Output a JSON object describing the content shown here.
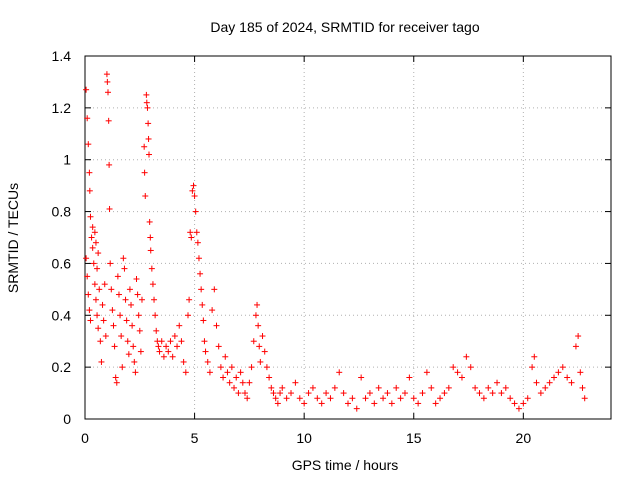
{
  "chart_data": {
    "type": "scatter",
    "title": "Day 185 of 2024, SRMTID for receiver tago",
    "xlabel": "GPS time / hours",
    "ylabel": "SRMTID / TECUs",
    "xlim": [
      0,
      24
    ],
    "ylim": [
      0,
      1.4
    ],
    "x_ticks": [
      0,
      5,
      10,
      15,
      20
    ],
    "x_tick_labels": [
      "0",
      "5",
      "10",
      "15",
      "20"
    ],
    "y_ticks": [
      0,
      0.2,
      0.4,
      0.6,
      0.8,
      1.0,
      1.2,
      1.4
    ],
    "y_tick_labels": [
      "0",
      "0.2",
      "0.4",
      "0.6",
      "0.8",
      "1",
      "1.2",
      "1.4"
    ],
    "grid": true,
    "marker": "plus",
    "color": "#ff0000",
    "series": [
      {
        "name": "SRMTID",
        "points": [
          [
            0.05,
            1.27
          ],
          [
            0.1,
            1.16
          ],
          [
            0.15,
            1.06
          ],
          [
            0.2,
            0.95
          ],
          [
            0.22,
            0.88
          ],
          [
            0.25,
            0.78
          ],
          [
            0.05,
            0.62
          ],
          [
            0.1,
            0.55
          ],
          [
            0.15,
            0.48
          ],
          [
            0.2,
            0.42
          ],
          [
            0.25,
            0.38
          ],
          [
            0.3,
            0.7
          ],
          [
            0.35,
            0.66
          ],
          [
            0.4,
            0.6
          ],
          [
            0.45,
            0.52
          ],
          [
            0.5,
            0.46
          ],
          [
            0.55,
            0.4
          ],
          [
            0.6,
            0.35
          ],
          [
            0.35,
            0.74
          ],
          [
            0.45,
            0.72
          ],
          [
            0.5,
            0.68
          ],
          [
            0.55,
            0.58
          ],
          [
            0.6,
            0.64
          ],
          [
            0.65,
            0.5
          ],
          [
            0.7,
            0.3
          ],
          [
            0.75,
            0.22
          ],
          [
            0.8,
            0.44
          ],
          [
            0.85,
            0.38
          ],
          [
            0.9,
            0.52
          ],
          [
            0.95,
            0.32
          ],
          [
            1.0,
            1.33
          ],
          [
            1.02,
            1.3
          ],
          [
            1.05,
            1.26
          ],
          [
            1.08,
            1.15
          ],
          [
            1.1,
            0.98
          ],
          [
            1.12,
            0.81
          ],
          [
            1.15,
            0.6
          ],
          [
            1.2,
            0.5
          ],
          [
            1.25,
            0.42
          ],
          [
            1.3,
            0.36
          ],
          [
            1.35,
            0.28
          ],
          [
            1.4,
            0.16
          ],
          [
            1.45,
            0.14
          ],
          [
            1.5,
            0.55
          ],
          [
            1.55,
            0.48
          ],
          [
            1.6,
            0.4
          ],
          [
            1.65,
            0.32
          ],
          [
            1.7,
            0.2
          ],
          [
            1.75,
            0.62
          ],
          [
            1.8,
            0.58
          ],
          [
            1.85,
            0.46
          ],
          [
            1.9,
            0.38
          ],
          [
            1.95,
            0.3
          ],
          [
            2.0,
            0.25
          ],
          [
            2.05,
            0.5
          ],
          [
            2.1,
            0.44
          ],
          [
            2.15,
            0.36
          ],
          [
            2.2,
            0.28
          ],
          [
            2.25,
            0.22
          ],
          [
            2.3,
            0.18
          ],
          [
            2.35,
            0.54
          ],
          [
            2.4,
            0.48
          ],
          [
            2.45,
            0.4
          ],
          [
            2.5,
            0.34
          ],
          [
            2.55,
            0.26
          ],
          [
            2.6,
            0.46
          ],
          [
            2.7,
            1.05
          ],
          [
            2.72,
            0.95
          ],
          [
            2.75,
            0.86
          ],
          [
            2.8,
            1.25
          ],
          [
            2.82,
            1.22
          ],
          [
            2.85,
            1.2
          ],
          [
            2.88,
            1.14
          ],
          [
            2.9,
            1.08
          ],
          [
            2.92,
            1.02
          ],
          [
            2.95,
            0.76
          ],
          [
            2.98,
            0.7
          ],
          [
            3.0,
            0.65
          ],
          [
            3.05,
            0.58
          ],
          [
            3.1,
            0.52
          ],
          [
            3.15,
            0.46
          ],
          [
            3.2,
            0.4
          ],
          [
            3.25,
            0.34
          ],
          [
            3.3,
            0.3
          ],
          [
            3.35,
            0.28
          ],
          [
            3.4,
            0.26
          ],
          [
            3.5,
            0.3
          ],
          [
            3.6,
            0.24
          ],
          [
            3.7,
            0.28
          ],
          [
            3.8,
            0.26
          ],
          [
            3.9,
            0.3
          ],
          [
            4.0,
            0.24
          ],
          [
            4.1,
            0.32
          ],
          [
            4.2,
            0.28
          ],
          [
            4.3,
            0.36
          ],
          [
            4.4,
            0.3
          ],
          [
            4.5,
            0.22
          ],
          [
            4.6,
            0.18
          ],
          [
            4.7,
            0.4
          ],
          [
            4.75,
            0.46
          ],
          [
            4.8,
            0.72
          ],
          [
            4.85,
            0.7
          ],
          [
            4.9,
            0.88
          ],
          [
            4.95,
            0.9
          ],
          [
            5.0,
            0.86
          ],
          [
            5.05,
            0.8
          ],
          [
            5.1,
            0.72
          ],
          [
            5.15,
            0.68
          ],
          [
            5.2,
            0.62
          ],
          [
            5.25,
            0.56
          ],
          [
            5.3,
            0.5
          ],
          [
            5.35,
            0.44
          ],
          [
            5.4,
            0.38
          ],
          [
            5.45,
            0.3
          ],
          [
            5.5,
            0.26
          ],
          [
            5.6,
            0.22
          ],
          [
            5.7,
            0.18
          ],
          [
            5.8,
            0.42
          ],
          [
            5.9,
            0.5
          ],
          [
            6.0,
            0.36
          ],
          [
            6.1,
            0.28
          ],
          [
            6.2,
            0.2
          ],
          [
            6.3,
            0.16
          ],
          [
            6.4,
            0.24
          ],
          [
            6.5,
            0.18
          ],
          [
            6.6,
            0.14
          ],
          [
            6.7,
            0.2
          ],
          [
            6.8,
            0.12
          ],
          [
            6.9,
            0.16
          ],
          [
            7.0,
            0.1
          ],
          [
            7.1,
            0.18
          ],
          [
            7.2,
            0.14
          ],
          [
            7.3,
            0.1
          ],
          [
            7.4,
            0.08
          ],
          [
            7.5,
            0.14
          ],
          [
            7.6,
            0.2
          ],
          [
            7.7,
            0.3
          ],
          [
            7.8,
            0.4
          ],
          [
            7.85,
            0.44
          ],
          [
            7.9,
            0.36
          ],
          [
            7.95,
            0.28
          ],
          [
            8.0,
            0.22
          ],
          [
            8.1,
            0.32
          ],
          [
            8.2,
            0.26
          ],
          [
            8.3,
            0.2
          ],
          [
            8.4,
            0.16
          ],
          [
            8.5,
            0.12
          ],
          [
            8.6,
            0.1
          ],
          [
            8.7,
            0.08
          ],
          [
            8.8,
            0.06
          ],
          [
            8.9,
            0.1
          ],
          [
            9.0,
            0.12
          ],
          [
            9.2,
            0.08
          ],
          [
            9.4,
            0.1
          ],
          [
            9.6,
            0.14
          ],
          [
            9.8,
            0.08
          ],
          [
            10.0,
            0.06
          ],
          [
            10.2,
            0.1
          ],
          [
            10.4,
            0.12
          ],
          [
            10.6,
            0.08
          ],
          [
            10.8,
            0.06
          ],
          [
            11.0,
            0.1
          ],
          [
            11.2,
            0.08
          ],
          [
            11.4,
            0.12
          ],
          [
            11.6,
            0.18
          ],
          [
            11.8,
            0.1
          ],
          [
            12.0,
            0.06
          ],
          [
            12.2,
            0.08
          ],
          [
            12.4,
            0.04
          ],
          [
            12.6,
            0.16
          ],
          [
            12.8,
            0.08
          ],
          [
            13.0,
            0.1
          ],
          [
            13.2,
            0.06
          ],
          [
            13.4,
            0.12
          ],
          [
            13.6,
            0.08
          ],
          [
            13.8,
            0.1
          ],
          [
            14.0,
            0.06
          ],
          [
            14.2,
            0.12
          ],
          [
            14.4,
            0.08
          ],
          [
            14.6,
            0.1
          ],
          [
            14.8,
            0.16
          ],
          [
            15.0,
            0.08
          ],
          [
            15.2,
            0.06
          ],
          [
            15.4,
            0.1
          ],
          [
            15.6,
            0.18
          ],
          [
            15.8,
            0.12
          ],
          [
            16.0,
            0.06
          ],
          [
            16.2,
            0.08
          ],
          [
            16.4,
            0.1
          ],
          [
            16.6,
            0.12
          ],
          [
            16.8,
            0.2
          ],
          [
            17.0,
            0.18
          ],
          [
            17.2,
            0.16
          ],
          [
            17.4,
            0.24
          ],
          [
            17.6,
            0.2
          ],
          [
            17.8,
            0.12
          ],
          [
            18.0,
            0.1
          ],
          [
            18.2,
            0.08
          ],
          [
            18.4,
            0.12
          ],
          [
            18.6,
            0.1
          ],
          [
            18.8,
            0.14
          ],
          [
            19.0,
            0.1
          ],
          [
            19.2,
            0.12
          ],
          [
            19.4,
            0.08
          ],
          [
            19.6,
            0.06
          ],
          [
            19.8,
            0.04
          ],
          [
            20.0,
            0.06
          ],
          [
            20.2,
            0.08
          ],
          [
            20.4,
            0.2
          ],
          [
            20.5,
            0.24
          ],
          [
            20.6,
            0.14
          ],
          [
            20.8,
            0.1
          ],
          [
            21.0,
            0.12
          ],
          [
            21.2,
            0.14
          ],
          [
            21.4,
            0.16
          ],
          [
            21.6,
            0.18
          ],
          [
            21.8,
            0.2
          ],
          [
            22.0,
            0.16
          ],
          [
            22.2,
            0.14
          ],
          [
            22.4,
            0.28
          ],
          [
            22.5,
            0.32
          ],
          [
            22.6,
            0.18
          ],
          [
            22.7,
            0.12
          ],
          [
            22.8,
            0.08
          ]
        ]
      }
    ]
  }
}
